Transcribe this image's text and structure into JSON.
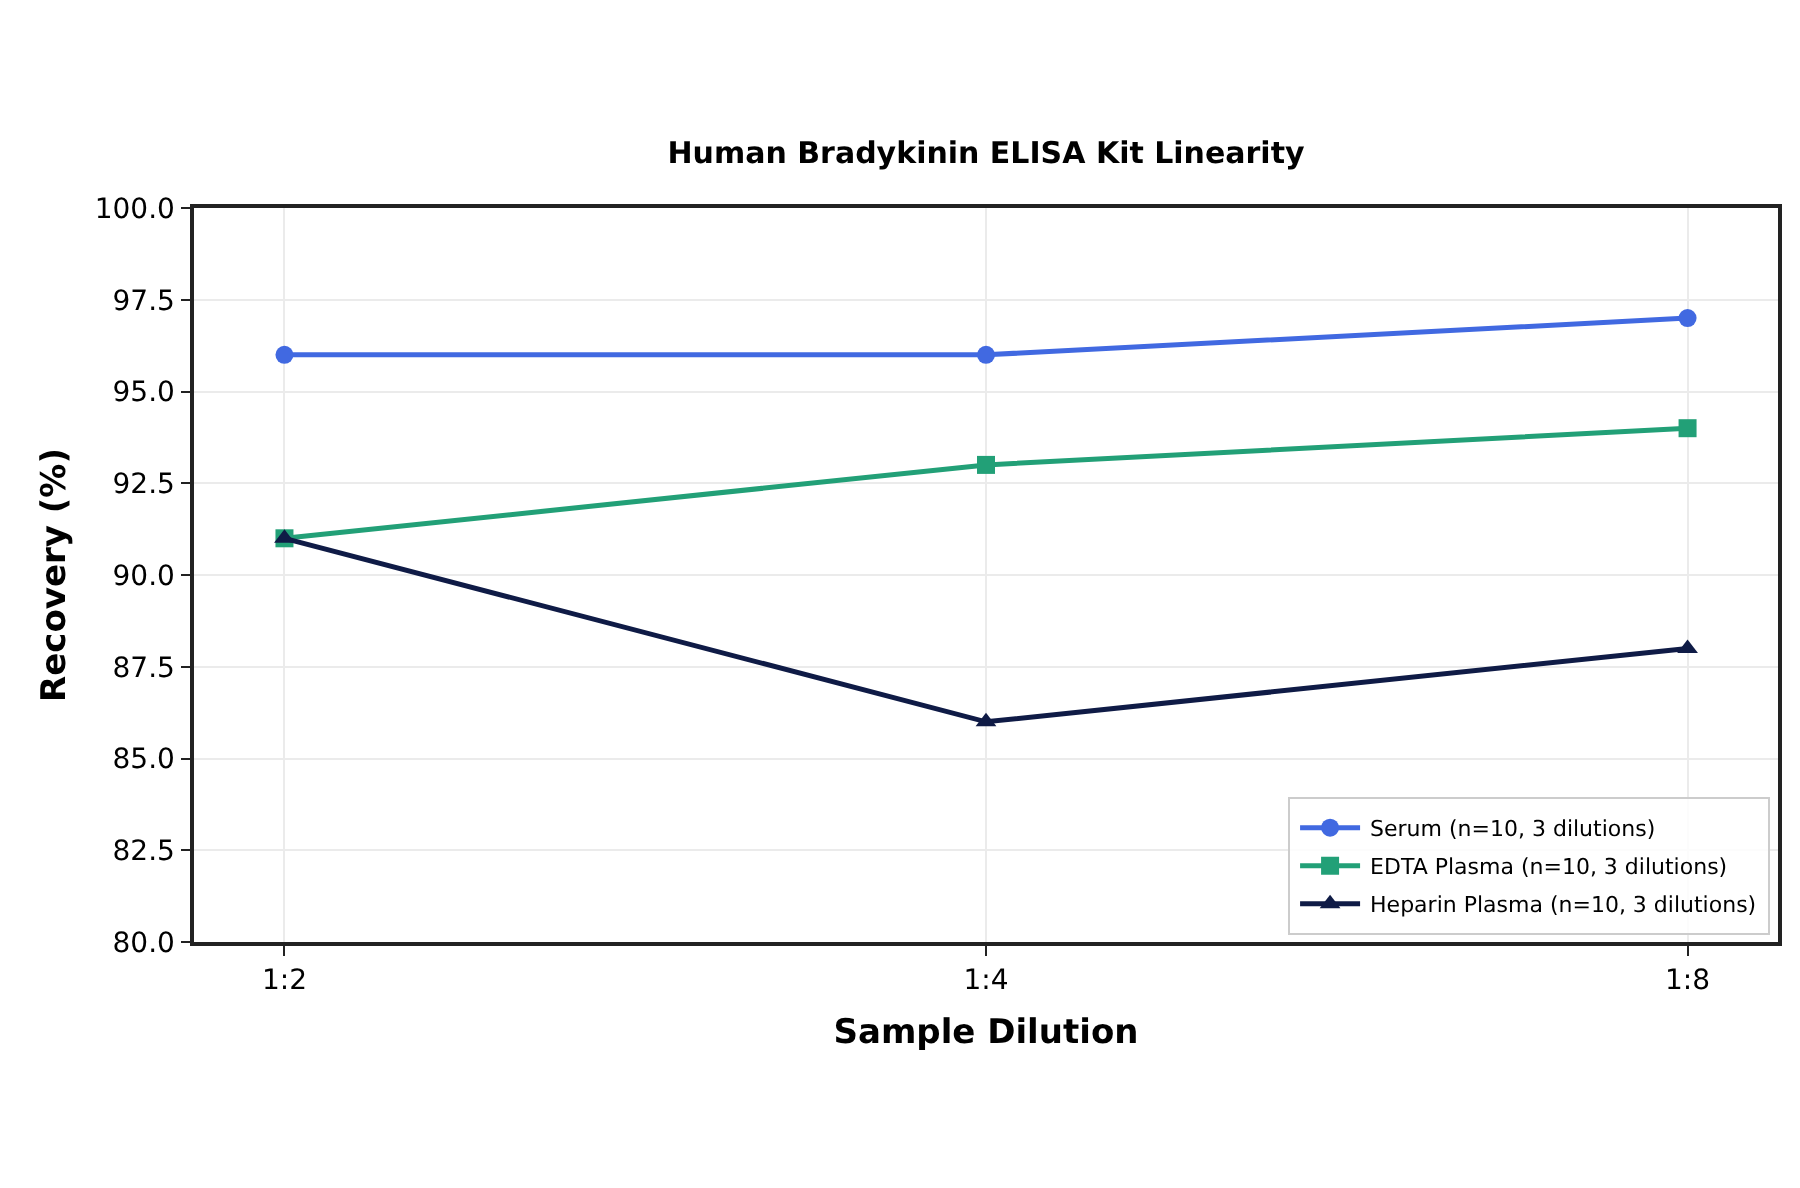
{
  "chart_data": {
    "type": "line",
    "title": "Human Bradykinin ELISA Kit Linearity",
    "xlabel": "Sample Dilution",
    "ylabel": "Recovery (%)",
    "categories": [
      "1:2",
      "1:4",
      "1:8"
    ],
    "series": [
      {
        "name": "Serum (n=10, 3 dilutions)",
        "color": "#4169e1",
        "marker": "circle",
        "values": [
          96,
          96,
          97
        ]
      },
      {
        "name": "EDTA Plasma (n=10, 3 dilutions)",
        "color": "#22a077",
        "marker": "square",
        "values": [
          91,
          93,
          94
        ]
      },
      {
        "name": "Heparin Plasma (n=10, 3 dilutions)",
        "color": "#0f1b46",
        "marker": "triangle",
        "values": [
          91,
          86,
          88
        ]
      }
    ],
    "ylim": [
      80,
      100
    ],
    "yticks": [
      {
        "value": 80,
        "label": "80.0"
      },
      {
        "value": 82.5,
        "label": "82.5"
      },
      {
        "value": 85,
        "label": "85.0"
      },
      {
        "value": 87.5,
        "label": "87.5"
      },
      {
        "value": 90,
        "label": "90.0"
      },
      {
        "value": 92.5,
        "label": "92.5"
      },
      {
        "value": 95,
        "label": "95.0"
      },
      {
        "value": 97.5,
        "label": "97.5"
      },
      {
        "value": 100,
        "label": "100.0"
      }
    ],
    "grid": true,
    "legend": "bottom right",
    "line_style": "solid"
  }
}
